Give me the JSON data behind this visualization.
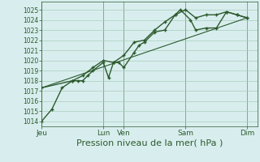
{
  "bg_color": "#d8eeee",
  "grid_color_major": "#aaccbb",
  "grid_color_minor": "#bbddcc",
  "line_color": "#2d5a2d",
  "marker_color": "#2d5a2d",
  "xlabel": "Pression niveau de la mer( hPa )",
  "xlabel_fontsize": 8,
  "yticks": [
    1014,
    1015,
    1016,
    1017,
    1018,
    1019,
    1020,
    1021,
    1022,
    1023,
    1024,
    1025
  ],
  "ylim": [
    1013.5,
    1025.8
  ],
  "day_labels": [
    "Jeu",
    "Lun",
    "Ven",
    "Sam",
    "Dim"
  ],
  "day_positions": [
    0.0,
    0.286,
    0.381,
    0.667,
    0.952
  ],
  "xmin": 0.0,
  "xmax": 1.0,
  "vline_positions": [
    0.0,
    0.286,
    0.381,
    0.667,
    0.952
  ],
  "series": [
    [
      0.0,
      1014.0,
      0.048,
      1015.2,
      0.095,
      1017.3,
      0.143,
      1018.0,
      0.167,
      1018.0,
      0.19,
      1018.0,
      0.214,
      1018.5,
      0.238,
      1019.0,
      0.286,
      1019.8,
      0.31,
      1018.3,
      0.333,
      1019.8,
      0.357,
      1019.8,
      0.381,
      1019.3,
      0.429,
      1020.8,
      0.452,
      1021.5,
      0.476,
      1021.8,
      0.524,
      1022.8,
      0.571,
      1023.0,
      0.619,
      1024.5,
      0.643,
      1025.0,
      0.69,
      1024.0,
      0.714,
      1023.0,
      0.762,
      1023.2,
      0.81,
      1023.2,
      0.857,
      1024.8,
      0.905,
      1024.5,
      0.952,
      1024.2
    ],
    [
      0.0,
      1017.3,
      0.143,
      1018.0,
      0.19,
      1018.5,
      0.238,
      1019.3,
      0.286,
      1020.0,
      0.333,
      1019.8,
      0.381,
      1020.5,
      0.429,
      1021.8,
      0.476,
      1022.0,
      0.524,
      1023.0,
      0.571,
      1023.8,
      0.619,
      1024.5,
      0.667,
      1025.0,
      0.714,
      1024.2,
      0.762,
      1024.5,
      0.81,
      1024.5,
      0.857,
      1024.8,
      0.905,
      1024.5,
      0.952,
      1024.2
    ],
    [
      0.0,
      1017.3,
      0.952,
      1024.2
    ]
  ],
  "series_markers": [
    true,
    true,
    false
  ],
  "series_lw": [
    1.0,
    1.0,
    0.8
  ]
}
